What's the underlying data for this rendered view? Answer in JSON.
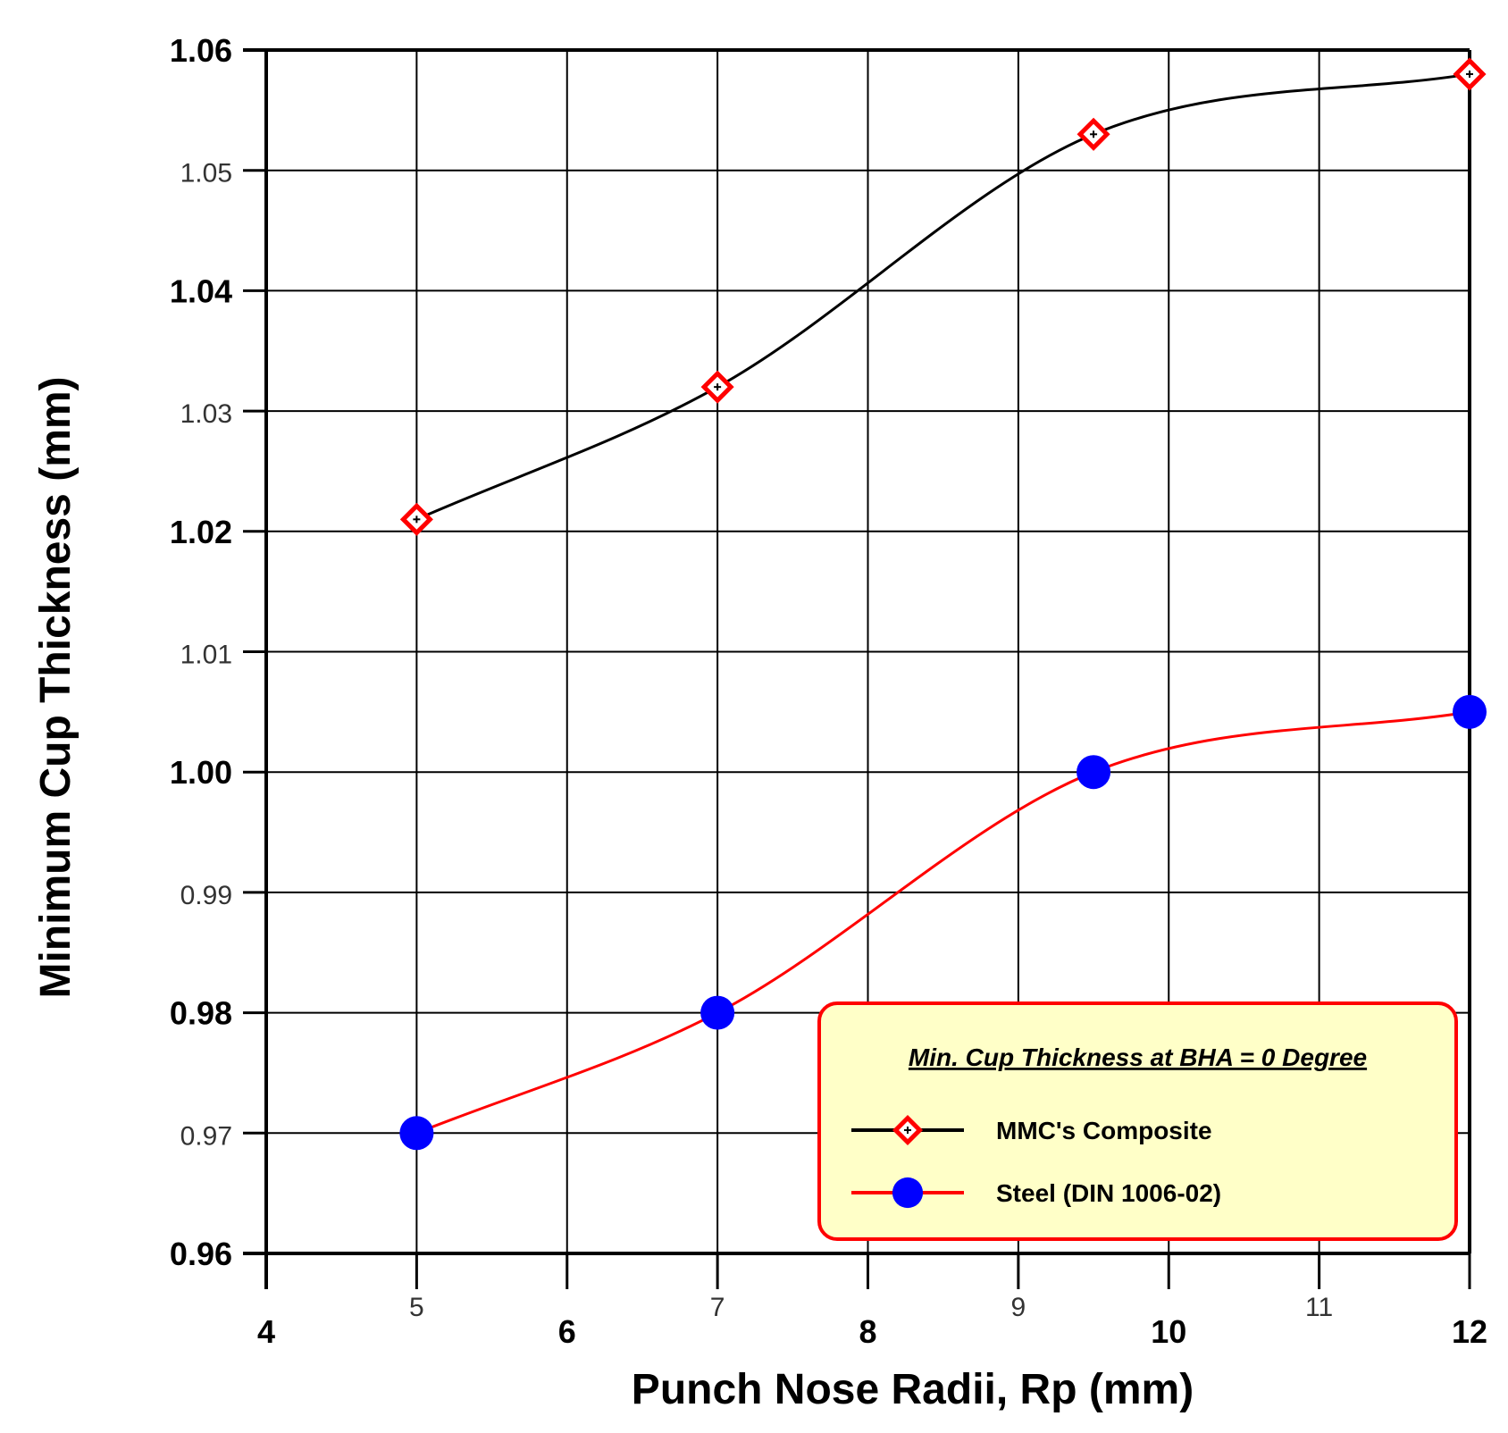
{
  "chart_data": {
    "type": "line",
    "xlabel": "Punch Nose Radii, Rp (mm)",
    "ylabel": "Minimum Cup Thickness (mm)",
    "xlim": [
      4,
      12
    ],
    "ylim": [
      0.96,
      1.06
    ],
    "x_ticks": [
      {
        "value": 4,
        "label": "4",
        "style": "major"
      },
      {
        "value": 5,
        "label": "5",
        "style": "minor"
      },
      {
        "value": 6,
        "label": "6",
        "style": "major"
      },
      {
        "value": 7,
        "label": "7",
        "style": "minor"
      },
      {
        "value": 8,
        "label": "8",
        "style": "major"
      },
      {
        "value": 9,
        "label": "9",
        "style": "minor"
      },
      {
        "value": 10,
        "label": "10",
        "style": "major"
      },
      {
        "value": 11,
        "label": "11",
        "style": "minor"
      },
      {
        "value": 12,
        "label": "12",
        "style": "major"
      }
    ],
    "y_ticks": [
      {
        "value": 0.96,
        "label": "0.96",
        "style": "major"
      },
      {
        "value": 0.97,
        "label": "0.97",
        "style": "minor"
      },
      {
        "value": 0.98,
        "label": "0.98",
        "style": "major"
      },
      {
        "value": 0.99,
        "label": "0.99",
        "style": "minor"
      },
      {
        "value": 1.0,
        "label": "1.00",
        "style": "major"
      },
      {
        "value": 1.01,
        "label": "1.01",
        "style": "minor"
      },
      {
        "value": 1.02,
        "label": "1.02",
        "style": "major"
      },
      {
        "value": 1.03,
        "label": "1.03",
        "style": "minor"
      },
      {
        "value": 1.04,
        "label": "1.04",
        "style": "major"
      },
      {
        "value": 1.05,
        "label": "1.05",
        "style": "minor"
      },
      {
        "value": 1.06,
        "label": "1.06",
        "style": "major"
      }
    ],
    "grid": true,
    "legend": {
      "title": "Min. Cup Thickness  at BHA = 0 Degree",
      "position": "bottom-right",
      "background": "#ffffc8",
      "border": "#ff0000"
    },
    "series": [
      {
        "name": "MMC's Composite",
        "line_color": "#000000",
        "marker": "diamond",
        "marker_color": "#ff0000",
        "x": [
          5,
          7,
          9.5,
          12
        ],
        "y": [
          1.021,
          1.032,
          1.053,
          1.058
        ]
      },
      {
        "name": "Steel (DIN  1006-02)",
        "line_color": "#ff0000",
        "marker": "circle",
        "marker_color": "#0000ff",
        "x": [
          5,
          7,
          9.5,
          12
        ],
        "y": [
          0.97,
          0.98,
          1.0,
          1.005
        ]
      }
    ]
  }
}
